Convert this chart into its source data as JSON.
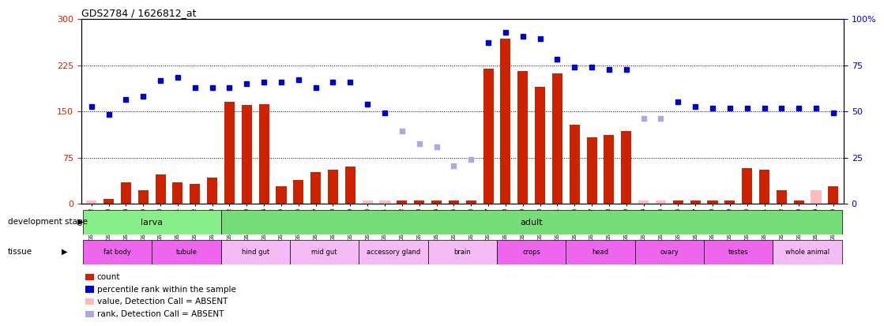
{
  "title": "GDS2784 / 1626812_at",
  "samples": [
    "GSM188092",
    "GSM188093",
    "GSM188094",
    "GSM188095",
    "GSM188100",
    "GSM188101",
    "GSM188102",
    "GSM188103",
    "GSM188072",
    "GSM188073",
    "GSM188074",
    "GSM188075",
    "GSM188076",
    "GSM188077",
    "GSM188078",
    "GSM188079",
    "GSM188080",
    "GSM188081",
    "GSM188082",
    "GSM188083",
    "GSM188084",
    "GSM188085",
    "GSM188086",
    "GSM188087",
    "GSM188088",
    "GSM188089",
    "GSM188090",
    "GSM188091",
    "GSM188096",
    "GSM188097",
    "GSM188098",
    "GSM188099",
    "GSM188104",
    "GSM188105",
    "GSM188106",
    "GSM188107",
    "GSM188108",
    "GSM188109",
    "GSM188110",
    "GSM188111",
    "GSM188112",
    "GSM188113",
    "GSM188114",
    "GSM188115"
  ],
  "counts": [
    5,
    8,
    35,
    22,
    48,
    35,
    32,
    42,
    165,
    160,
    162,
    28,
    38,
    52,
    55,
    60,
    5,
    5,
    5,
    5,
    5,
    5,
    5,
    220,
    268,
    215,
    190,
    212,
    128,
    108,
    112,
    118,
    5,
    5,
    5,
    5,
    5,
    5,
    58,
    55,
    22,
    5,
    22,
    28
  ],
  "absent_count_flags": [
    true,
    false,
    false,
    false,
    false,
    false,
    false,
    false,
    false,
    false,
    false,
    false,
    false,
    false,
    false,
    false,
    true,
    true,
    false,
    false,
    false,
    false,
    false,
    false,
    false,
    false,
    false,
    false,
    false,
    false,
    false,
    false,
    true,
    true,
    false,
    false,
    false,
    false,
    false,
    false,
    false,
    false,
    true,
    false
  ],
  "ranks": [
    158,
    145,
    170,
    175,
    200,
    205,
    188,
    188,
    188,
    195,
    198,
    198,
    202,
    188,
    198,
    198,
    162,
    148,
    118,
    98,
    92,
    62,
    72,
    262,
    278,
    272,
    268,
    235,
    222,
    222,
    218,
    218,
    138,
    138,
    165,
    158,
    155,
    155,
    155,
    155,
    155,
    155,
    155,
    148
  ],
  "absent_rank_flags": [
    false,
    false,
    false,
    false,
    false,
    false,
    false,
    false,
    false,
    false,
    false,
    false,
    false,
    false,
    false,
    false,
    false,
    false,
    true,
    true,
    true,
    true,
    true,
    false,
    false,
    false,
    false,
    false,
    false,
    false,
    false,
    false,
    true,
    true,
    false,
    false,
    false,
    false,
    false,
    false,
    false,
    false,
    false,
    false
  ],
  "tissue": [
    {
      "label": "fat body",
      "start": 0,
      "end": 4,
      "magenta": true
    },
    {
      "label": "tubule",
      "start": 4,
      "end": 8,
      "magenta": true
    },
    {
      "label": "hind gut",
      "start": 8,
      "end": 12,
      "magenta": false
    },
    {
      "label": "mid gut",
      "start": 12,
      "end": 16,
      "magenta": false
    },
    {
      "label": "accessory gland",
      "start": 16,
      "end": 20,
      "magenta": false
    },
    {
      "label": "brain",
      "start": 20,
      "end": 24,
      "magenta": false
    },
    {
      "label": "crops",
      "start": 24,
      "end": 28,
      "magenta": true
    },
    {
      "label": "head",
      "start": 28,
      "end": 32,
      "magenta": true
    },
    {
      "label": "ovary",
      "start": 32,
      "end": 36,
      "magenta": true
    },
    {
      "label": "testes",
      "start": 36,
      "end": 40,
      "magenta": true
    },
    {
      "label": "whole animal",
      "start": 40,
      "end": 44,
      "magenta": false
    }
  ],
  "bar_color": "#cc2200",
  "absent_bar_color": "#ffbbbb",
  "rank_color": "#0000cc",
  "absent_rank_color": "#aaaadd",
  "larva_color": "#88ee88",
  "adult_color": "#77dd77",
  "magenta_color": "#ee66ee",
  "light_magenta_color": "#f5bbf5",
  "legend_items": [
    {
      "color": "#cc2200",
      "label": "count"
    },
    {
      "color": "#0000cc",
      "label": "percentile rank within the sample"
    },
    {
      "color": "#ffbbbb",
      "label": "value, Detection Call = ABSENT"
    },
    {
      "color": "#aaaadd",
      "label": "rank, Detection Call = ABSENT"
    }
  ]
}
